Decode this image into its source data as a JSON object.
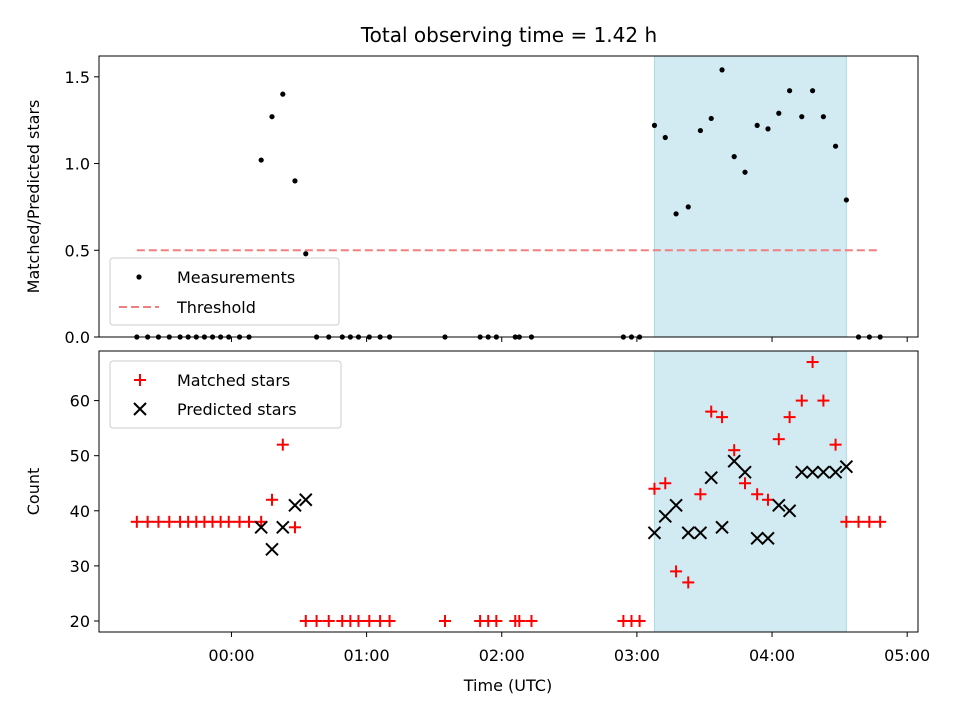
{
  "chart_data": {
    "type": "scatter",
    "title": "Total observing time = 1.42 h",
    "x_axis": {
      "label": "Time (UTC)",
      "ticks": [
        "00:00",
        "01:00",
        "02:00",
        "03:00",
        "04:00",
        "05:00"
      ],
      "tick_values_h": [
        0,
        1,
        2,
        3,
        4,
        5
      ],
      "xlim_h": [
        -0.98,
        5.08
      ]
    },
    "highlight_span_h": [
      3.13,
      4.55
    ],
    "highlight_color": "#add8e6",
    "top_panel": {
      "ylabel": "Matched/Predicted stars",
      "ylim": [
        0,
        1.62
      ],
      "yticks": [
        "0.0",
        "0.5",
        "1.0",
        "1.5"
      ],
      "ytick_values": [
        0,
        0.5,
        1.0,
        1.5
      ],
      "legend": {
        "position": "lower-left",
        "entries": [
          "Measurements",
          "Threshold"
        ]
      },
      "series": [
        {
          "name": "Measurements",
          "marker": "dot",
          "color": "#000000",
          "x_h": [
            -0.7,
            -0.62,
            -0.54,
            -0.46,
            -0.38,
            -0.32,
            -0.26,
            -0.2,
            -0.14,
            -0.08,
            -0.02,
            0.06,
            0.13,
            0.22,
            0.3,
            0.38,
            0.47,
            0.55,
            0.63,
            0.72,
            0.82,
            0.88,
            0.94,
            1.02,
            1.1,
            1.17,
            1.58,
            1.84,
            1.9,
            1.96,
            2.1,
            2.13,
            2.22,
            2.9,
            2.96,
            3.02,
            3.13,
            3.21,
            3.29,
            3.38,
            3.47,
            3.55,
            3.63,
            3.72,
            3.8,
            3.89,
            3.97,
            4.05,
            4.13,
            4.22,
            4.3,
            4.38,
            4.47,
            4.55,
            4.64,
            4.72,
            4.8
          ],
          "y": [
            0,
            0,
            0,
            0,
            0,
            0,
            0,
            0,
            0,
            0,
            0,
            0,
            0,
            1.02,
            1.27,
            1.4,
            0.9,
            0.48,
            0,
            0,
            0,
            0,
            0,
            0,
            0,
            0,
            0,
            0,
            0,
            0,
            0,
            0,
            0,
            0,
            0,
            0,
            1.22,
            1.15,
            0.71,
            0.75,
            1.19,
            1.26,
            1.54,
            1.04,
            0.95,
            1.22,
            1.2,
            1.29,
            1.42,
            1.27,
            1.42,
            1.27,
            1.1,
            0.79,
            0,
            0,
            0
          ]
        },
        {
          "name": "Threshold",
          "style": "dashed",
          "color": "#f08080",
          "x_h": [
            -0.7,
            4.8
          ],
          "y": [
            0.5,
            0.5
          ]
        }
      ]
    },
    "bottom_panel": {
      "ylabel": "Count",
      "ylim": [
        18,
        69
      ],
      "yticks": [
        "20",
        "30",
        "40",
        "50",
        "60"
      ],
      "ytick_values": [
        20,
        30,
        40,
        50,
        60
      ],
      "legend": {
        "position": "top-left",
        "entries": [
          "Matched stars",
          "Predicted stars"
        ]
      },
      "series": [
        {
          "name": "Matched stars",
          "marker": "plus",
          "color": "#ff0000",
          "x_h": [
            -0.7,
            -0.62,
            -0.54,
            -0.46,
            -0.38,
            -0.32,
            -0.26,
            -0.2,
            -0.14,
            -0.08,
            -0.02,
            0.06,
            0.13,
            0.22,
            0.3,
            0.38,
            0.47,
            0.55,
            0.63,
            0.72,
            0.82,
            0.88,
            0.94,
            1.02,
            1.1,
            1.17,
            1.58,
            1.84,
            1.9,
            1.96,
            2.1,
            2.13,
            2.22,
            2.9,
            2.96,
            3.02,
            3.13,
            3.21,
            3.29,
            3.38,
            3.47,
            3.55,
            3.63,
            3.72,
            3.8,
            3.89,
            3.97,
            4.05,
            4.13,
            4.22,
            4.3,
            4.38,
            4.47,
            4.55,
            4.64,
            4.72,
            4.8
          ],
          "y": [
            38,
            38,
            38,
            38,
            38,
            38,
            38,
            38,
            38,
            38,
            38,
            38,
            38,
            38,
            42,
            52,
            37,
            20,
            20,
            20,
            20,
            20,
            20,
            20,
            20,
            20,
            20,
            20,
            20,
            20,
            20,
            20,
            20,
            20,
            20,
            20,
            44,
            45,
            29,
            27,
            43,
            58,
            57,
            51,
            45,
            43,
            42,
            53,
            57,
            60,
            67,
            60,
            52,
            38,
            38,
            38,
            38
          ]
        },
        {
          "name": "Predicted stars",
          "marker": "x",
          "color": "#000000",
          "x_h": [
            0.22,
            0.3,
            0.38,
            0.47,
            0.55,
            3.13,
            3.21,
            3.29,
            3.38,
            3.47,
            3.55,
            3.63,
            3.72,
            3.8,
            3.89,
            3.97,
            4.05,
            4.13,
            4.22,
            4.3,
            4.38,
            4.47,
            4.55
          ],
          "y": [
            37,
            33,
            37,
            41,
            42,
            36,
            39,
            41,
            36,
            36,
            46,
            37,
            49,
            47,
            35,
            35,
            41,
            40,
            47,
            47,
            47,
            47,
            48
          ]
        }
      ]
    }
  }
}
